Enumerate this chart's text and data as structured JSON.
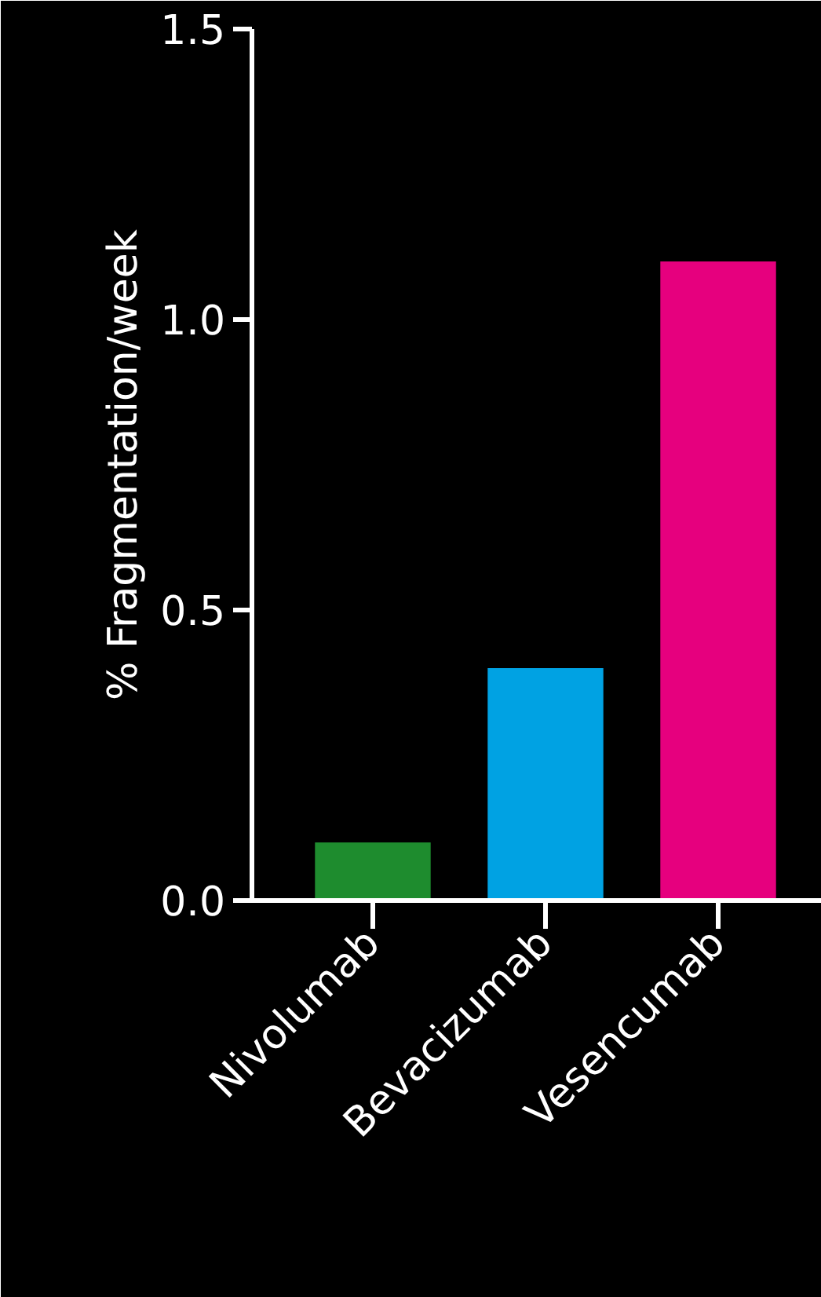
{
  "chart_data": {
    "type": "bar",
    "ylabel": "% Fragmentation/week",
    "categories": [
      "Nivolumab",
      "Bevacizumab",
      "Vesencumab"
    ],
    "values": [
      0.1,
      0.4,
      1.1
    ],
    "colors": [
      "#1e8c2e",
      "#00a2e3",
      "#e6007e"
    ],
    "ylim": [
      0,
      1.5
    ],
    "yticks": [
      {
        "value": 0,
        "label": "0.0"
      },
      {
        "value": 0.5,
        "label": "0.5"
      },
      {
        "value": 1.0,
        "label": "1.0"
      },
      {
        "value": 1.5,
        "label": "1.5"
      }
    ]
  }
}
